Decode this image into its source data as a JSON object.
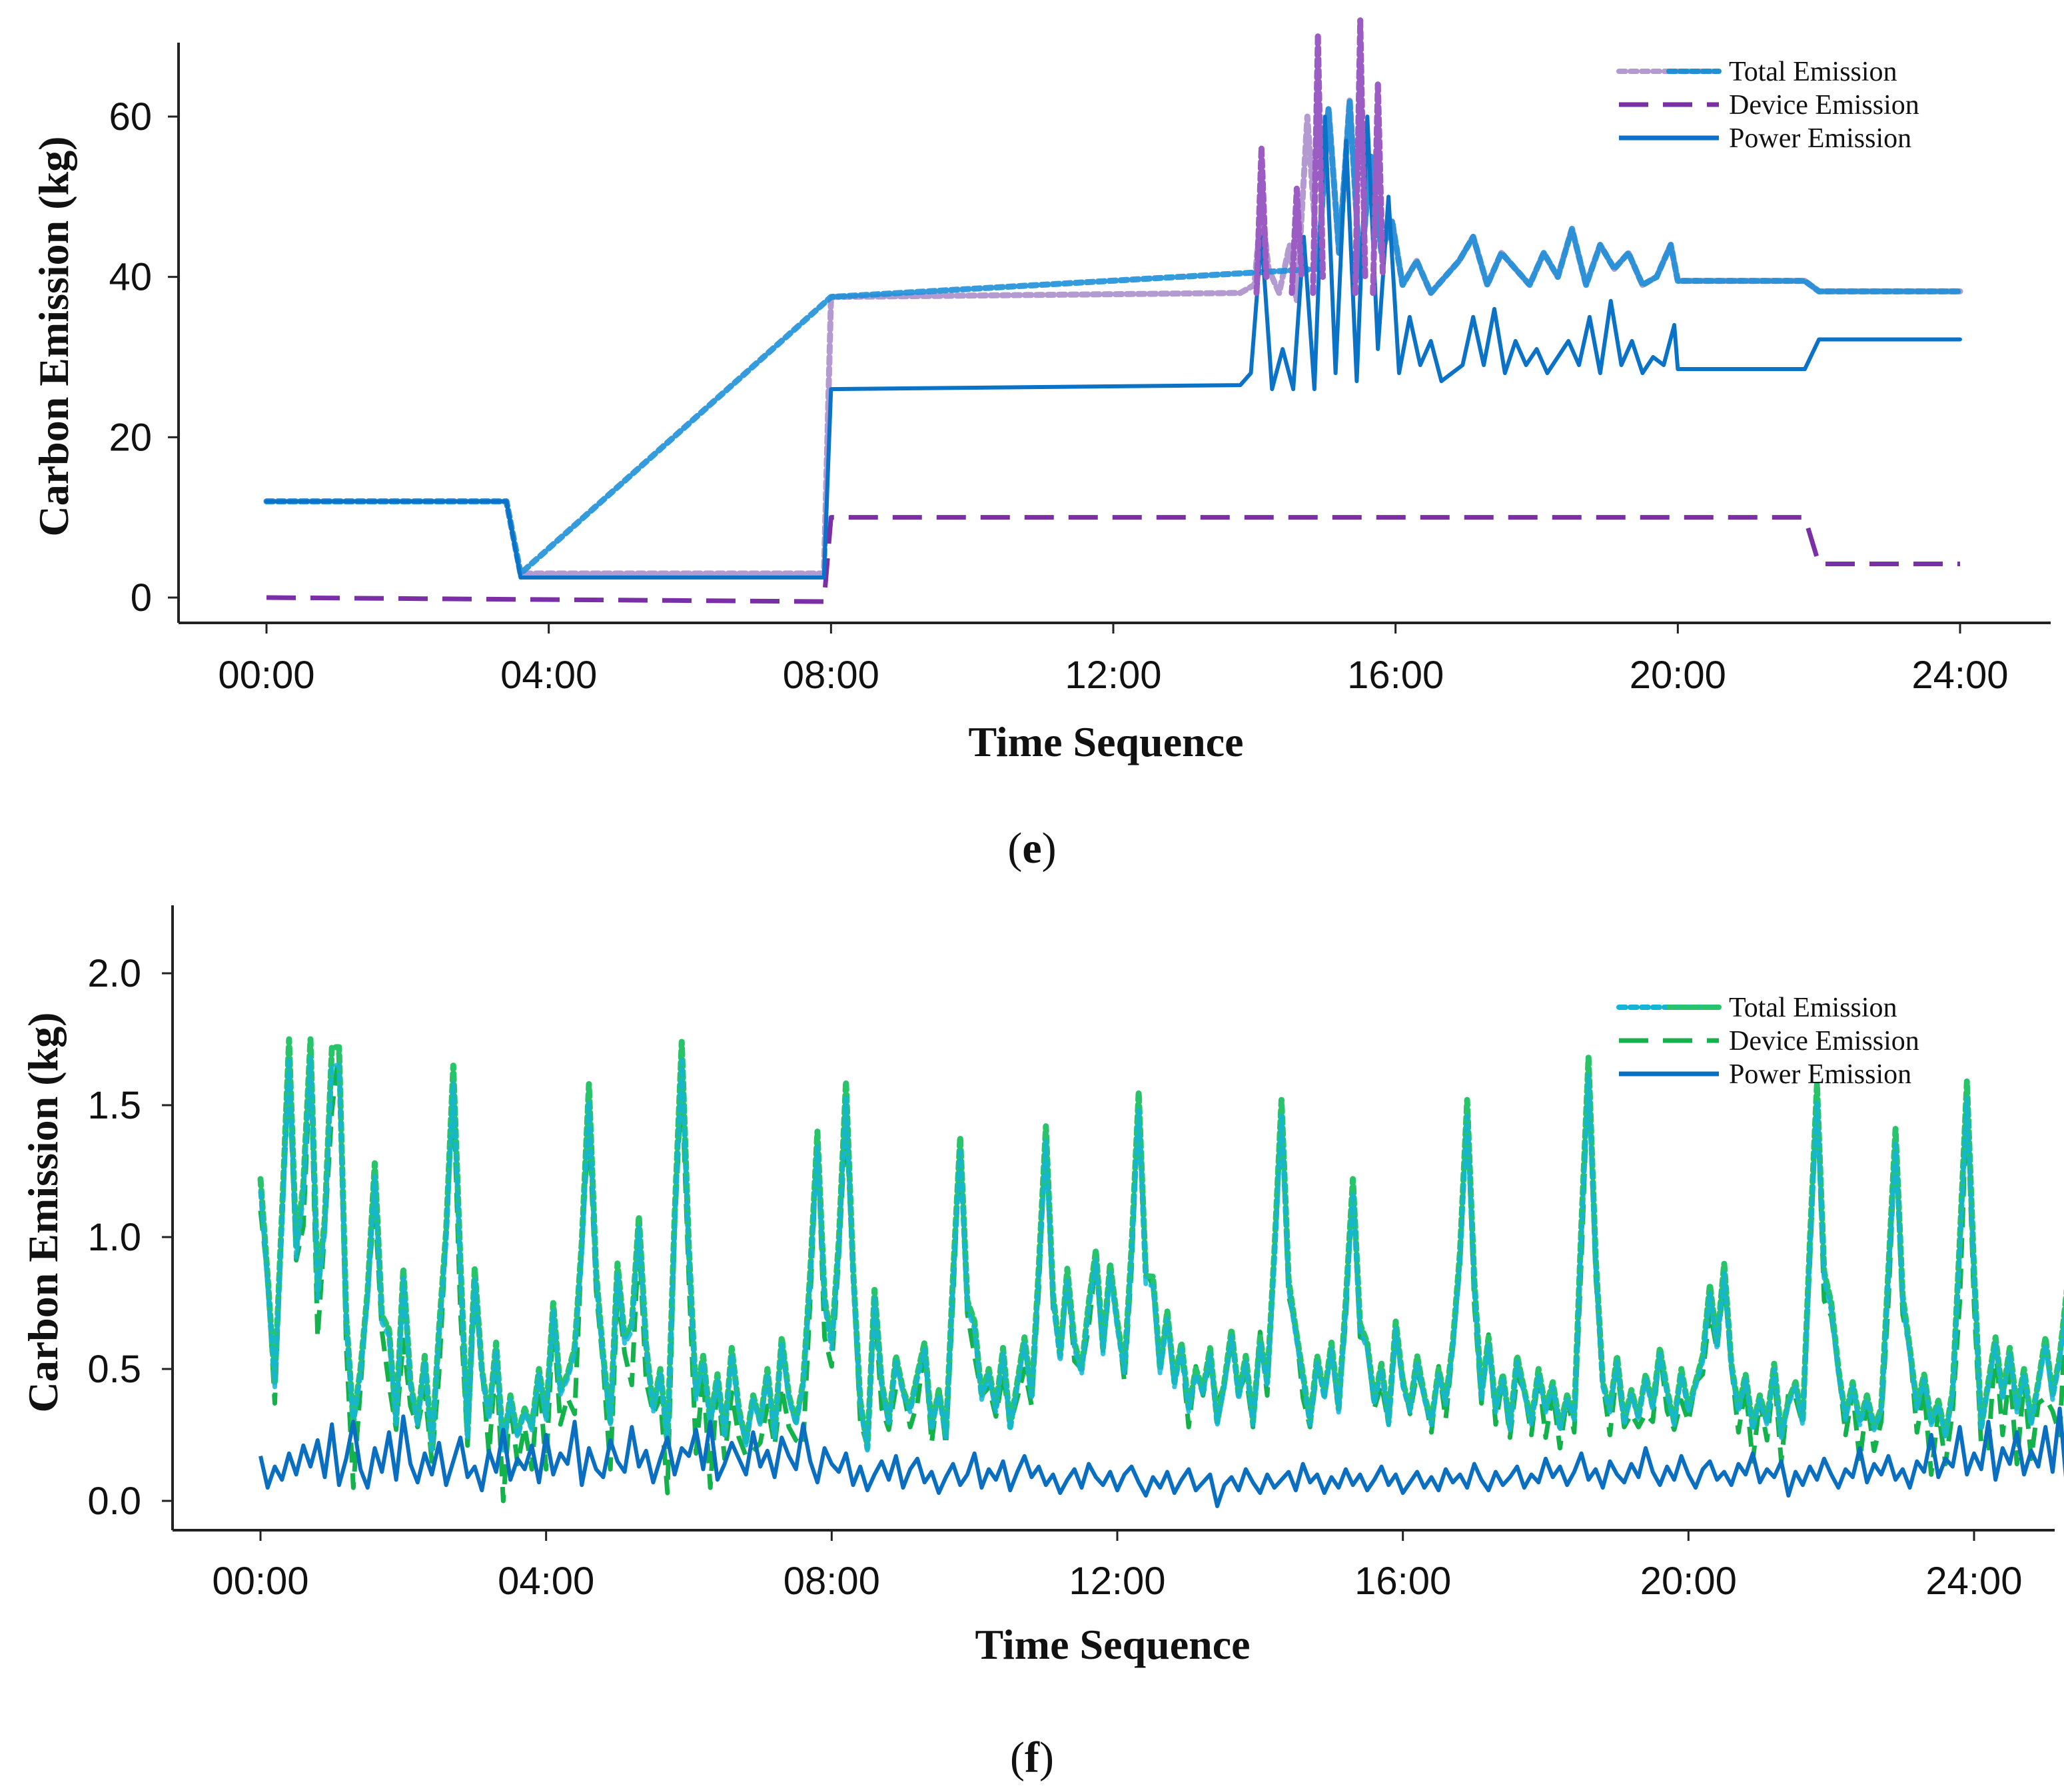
{
  "chart_data": [
    {
      "panel": "e",
      "panel_label": "e",
      "type": "line",
      "title": "",
      "xlabel": "Time Sequence",
      "ylabel": "Carbon Emission (kg)",
      "xlim": [
        -1.2,
        25.5
      ],
      "ylim": [
        -3,
        71
      ],
      "xticks": [
        0,
        4,
        8,
        12,
        16,
        20,
        24
      ],
      "xtick_labels": [
        "00:00",
        "04:00",
        "08:00",
        "12:00",
        "16:00",
        "20:00",
        "24:00"
      ],
      "yticks": [
        0,
        20,
        40,
        60
      ],
      "ytick_labels": [
        "0",
        "20",
        "40",
        "60"
      ],
      "legend": {
        "placement": "top-right"
      },
      "grid": false,
      "series": [
        {
          "name": "Total Emission",
          "style": "dotted",
          "colors": [
            "#b39ad0",
            "#1e90d8"
          ],
          "x": [
            0,
            3.4,
            3.6,
            7.9,
            8.0,
            13.8,
            14.0,
            14.1,
            14.2,
            14.35,
            14.5,
            14.6,
            14.75,
            14.9,
            15.05,
            15.2,
            15.35,
            15.5,
            15.65,
            15.8,
            15.95,
            16.1,
            16.3,
            16.5,
            16.7,
            16.9,
            17.1,
            17.3,
            17.5,
            17.7,
            17.9,
            18.1,
            18.3,
            18.5,
            18.7,
            18.9,
            19.1,
            19.3,
            19.5,
            19.7,
            19.9,
            20.0,
            21.8,
            22.0,
            24.0
          ],
          "y": [
            12,
            12,
            3,
            3,
            37.5,
            38,
            39,
            49,
            41,
            38,
            44,
            37,
            60,
            41,
            61,
            43,
            62,
            40,
            55,
            43,
            47,
            39,
            42,
            38,
            40,
            42,
            45,
            39,
            43,
            41,
            39,
            43,
            40,
            46,
            39,
            44,
            41,
            43,
            39,
            40,
            44,
            39.5,
            39.5,
            38.2,
            38.2
          ]
        },
        {
          "name": "Device Emission",
          "style": "dashed",
          "color": "#7b2fa6",
          "x": [
            0,
            7.9,
            8.0,
            21.8,
            22.0,
            24.0
          ],
          "y": [
            0,
            -0.5,
            10,
            10,
            4.2,
            4.2
          ]
        },
        {
          "name": "Power Emission",
          "style": "solid",
          "color": "#0a72c7",
          "x": [
            0,
            3.4,
            3.6,
            7.9,
            8.0,
            13.8,
            13.95,
            14.1,
            14.25,
            14.4,
            14.55,
            14.7,
            14.85,
            15.0,
            15.15,
            15.3,
            15.45,
            15.6,
            15.75,
            15.9,
            16.05,
            16.2,
            16.35,
            16.5,
            16.65,
            16.8,
            16.95,
            17.1,
            17.25,
            17.4,
            17.55,
            17.7,
            17.85,
            18.0,
            18.15,
            18.3,
            18.45,
            18.6,
            18.75,
            18.9,
            19.05,
            19.2,
            19.35,
            19.5,
            19.65,
            19.8,
            19.95,
            20.0,
            21.8,
            22.0,
            24.0
          ],
          "y": [
            12,
            12,
            2.5,
            2.5,
            26,
            26.5,
            28,
            45,
            26,
            31,
            26,
            45,
            26,
            60,
            28,
            57,
            27,
            60,
            31,
            50,
            28,
            35,
            29,
            32,
            27,
            28,
            29,
            35,
            29,
            36,
            28,
            32,
            29,
            31,
            28,
            30,
            32,
            29,
            35,
            28,
            37,
            29,
            32,
            28,
            30,
            29,
            34,
            28.5,
            28.5,
            32.2,
            32.2
          ]
        }
      ]
    },
    {
      "panel": "f",
      "panel_label": "f",
      "type": "line",
      "title": "",
      "xlabel": "Time Sequence",
      "ylabel": "Carbon Emission (kg)",
      "xlim": [
        -1.2,
        25.5
      ],
      "ylim": [
        -0.12,
        2.26
      ],
      "xticks": [
        0,
        4,
        8,
        12,
        16,
        20,
        24
      ],
      "xtick_labels": [
        "00:00",
        "04:00",
        "08:00",
        "12:00",
        "16:00",
        "20:00",
        "24:00"
      ],
      "yticks": [
        0,
        0.5,
        1.0,
        1.5,
        2.0
      ],
      "ytick_labels": [
        "0.0",
        "0.5",
        "1.0",
        "1.5",
        "2.0"
      ],
      "legend": {
        "placement": "top-right"
      },
      "grid": false,
      "x_start": 0,
      "x_step": 0.1,
      "series": [
        {
          "name": "Total Emission",
          "style": "dotted",
          "colors": [
            "#12b5d8",
            "#28c46a"
          ],
          "y": [
            1.22,
            0.85,
            0.45,
            0.95,
            0.6,
            0.25,
            1.2,
            1.75,
            0.8,
            0.35,
            0.55,
            1.72,
            0.7,
            0.3,
            0.5,
            0.2,
            0.8,
            0.4,
            0.65,
            0.3,
            0.88,
            0.45,
            0.3,
            0.55,
            0.2,
            0.65,
            0.42,
            0.35,
            0.58,
            0.25,
            0.88,
            0.5,
            0.32,
            0.6,
            0.2,
            0.4,
            0.25,
            0.35,
            0.28,
            0.5,
            0.32,
            0.75,
            0.42,
            0.48,
            0.58,
            0.3,
            0.22,
            0.38,
            0.55,
            0.3,
            0.9,
            0.62,
            0.4,
            0.3,
            0.55,
            0.35,
            0.5,
            0.22,
            0.45,
            0.3,
            0.65,
            0.4,
            0.55,
            0.3,
            0.48,
            0.25,
            0.58,
            0.35,
            0.22,
            0.4,
            0.3,
            0.5,
            0.25,
            0.62,
            0.4,
            0.3,
            0.45,
            0.55,
            0.9,
            0.45,
            0.6,
            0.32,
            0.5,
            0.25,
            0.38,
            0.2,
            0.8,
            0.45,
            0.3,
            0.55,
            0.42,
            0.35,
            0.48,
            0.6,
            0.28,
            0.42,
            0.25,
            0.55,
            0.35,
            0.45,
            0.68,
            0.4,
            0.5,
            0.35,
            0.58,
            0.28,
            0.45,
            0.62,
            0.4,
            0.8,
            0.5,
            0.72,
            0.55,
            0.88,
            0.6,
            0.5,
            0.75,
            0.95,
            0.58,
            0.9,
            0.68,
            0.5,
            0.8,
            0.4,
            0.62,
            0.85,
            0.5,
            0.72,
            0.45,
            0.6,
            0.35,
            0.5,
            0.42,
            0.58,
            0.3,
            0.45,
            0.65,
            0.4,
            0.55,
            0.3,
            0.62,
            0.45,
            0.88,
            0.52,
            0.38,
            0.65,
            0.48,
            0.3,
            0.55,
            0.4,
            0.6,
            0.35,
            0.5,
            0.28,
            0.45,
            0.6,
            0.38,
            0.52,
            0.3,
            0.68,
            0.45,
            0.35,
            0.55,
            0.4,
            0.3,
            0.5,
            0.38,
            0.6,
            0.45,
            0.3,
            0.52,
            0.4,
            0.62,
            0.35,
            0.48,
            0.28,
            0.55,
            0.42,
            0.3,
            0.5,
            0.35,
            0.45,
            0.28,
            0.4,
            0.32,
            0.5,
            0.38,
            0.28,
            0.45,
            0.35,
            0.55,
            0.3,
            0.42,
            0.32,
            0.48,
            0.36,
            0.58,
            0.42,
            0.3,
            0.5,
            0.35,
            0.45,
            0.55,
            0.82,
            0.6,
            0.9,
            0.52,
            0.35,
            0.48,
            0.28,
            0.4,
            0.3,
            0.52,
            0.25,
            0.38,
            0.45,
            0.3,
            0.5,
            0.62,
            0.4,
            0.75,
            0.5,
            0.32,
            0.45,
            0.3,
            0.4,
            0.28,
            0.35,
            0.52,
            0.3,
            0.42,
            0.58,
            0.36,
            0.48,
            0.3,
            0.38,
            0.25,
            0.42,
            0.55,
            0.35,
            0.5,
            0.28,
            0.45,
            0.62,
            0.4,
            0.58,
            0.35,
            0.5,
            0.3,
            0.45,
            0.62,
            0.4,
            0.55,
            0.8,
            0.6
          ],
          "peaks": [
            [
              0.4,
              1.75
            ],
            [
              1.0,
              1.72
            ],
            [
              1.6,
              1.28
            ],
            [
              2.7,
              1.65
            ],
            [
              4.6,
              1.58
            ],
            [
              5.3,
              1.08
            ],
            [
              5.9,
              1.74
            ],
            [
              7.8,
              1.4
            ],
            [
              8.2,
              1.59
            ],
            [
              9.8,
              1.38
            ],
            [
              11.0,
              1.42
            ],
            [
              12.3,
              1.55
            ],
            [
              14.3,
              1.52
            ],
            [
              15.3,
              1.22
            ],
            [
              16.9,
              1.52
            ],
            [
              18.6,
              1.68
            ],
            [
              21.8,
              1.58
            ],
            [
              22.9,
              1.41
            ],
            [
              23.9,
              1.59
            ]
          ]
        },
        {
          "name": "Device Emission",
          "style": "dashed",
          "color": "#13b24a",
          "offset_from_power": 0.05
        },
        {
          "name": "Power Emission",
          "style": "solid",
          "color": "#0a6fc0",
          "y": [
            0.17,
            0.05,
            0.13,
            0.08,
            0.18,
            0.1,
            0.21,
            0.13,
            0.23,
            0.09,
            0.29,
            0.06,
            0.16,
            0.3,
            0.12,
            0.05,
            0.2,
            0.11,
            0.26,
            0.08,
            0.32,
            0.14,
            0.07,
            0.18,
            0.1,
            0.22,
            0.06,
            0.15,
            0.24,
            0.09,
            0.13,
            0.04,
            0.19,
            0.11,
            0.27,
            0.08,
            0.16,
            0.12,
            0.21,
            0.07,
            0.25,
            0.1,
            0.18,
            0.14,
            0.3,
            0.06,
            0.2,
            0.12,
            0.09,
            0.23,
            0.15,
            0.11,
            0.28,
            0.13,
            0.19,
            0.07,
            0.16,
            0.24,
            0.1,
            0.2,
            0.17,
            0.27,
            0.12,
            0.3,
            0.08,
            0.14,
            0.22,
            0.16,
            0.1,
            0.26,
            0.13,
            0.19,
            0.09,
            0.24,
            0.17,
            0.12,
            0.29,
            0.15,
            0.07,
            0.2,
            0.14,
            0.11,
            0.18,
            0.06,
            0.13,
            0.04,
            0.1,
            0.15,
            0.08,
            0.17,
            0.05,
            0.12,
            0.16,
            0.07,
            0.11,
            0.03,
            0.09,
            0.14,
            0.06,
            0.1,
            0.18,
            0.05,
            0.12,
            0.08,
            0.15,
            0.04,
            0.11,
            0.17,
            0.09,
            0.13,
            0.06,
            0.1,
            0.03,
            0.08,
            0.12,
            0.05,
            0.14,
            0.09,
            0.06,
            0.11,
            0.04,
            0.1,
            0.13,
            0.07,
            0.02,
            0.09,
            0.05,
            0.11,
            0.03,
            0.08,
            0.12,
            0.04,
            0.07,
            0.1,
            -0.02,
            0.06,
            0.09,
            0.04,
            0.12,
            0.07,
            0.03,
            0.1,
            0.05,
            0.08,
            0.11,
            0.04,
            0.14,
            0.07,
            0.1,
            0.03,
            0.09,
            0.05,
            0.12,
            0.06,
            0.1,
            0.04,
            0.08,
            0.13,
            0.06,
            0.1,
            0.03,
            0.07,
            0.11,
            0.05,
            0.09,
            0.04,
            0.12,
            0.07,
            0.1,
            0.05,
            0.14,
            0.08,
            0.04,
            0.11,
            0.06,
            0.09,
            0.13,
            0.05,
            0.1,
            0.07,
            0.16,
            0.09,
            0.13,
            0.06,
            0.11,
            0.18,
            0.08,
            0.12,
            0.05,
            0.15,
            0.1,
            0.07,
            0.14,
            0.09,
            0.2,
            0.11,
            0.06,
            0.13,
            0.08,
            0.17,
            0.1,
            0.05,
            0.12,
            0.15,
            0.08,
            0.11,
            0.06,
            0.14,
            0.1,
            0.18,
            0.07,
            0.12,
            0.09,
            0.15,
            0.02,
            0.11,
            0.06,
            0.13,
            0.08,
            0.16,
            0.1,
            0.05,
            0.12,
            0.09,
            0.2,
            0.07,
            0.14,
            0.1,
            0.17,
            0.08,
            0.12,
            0.05,
            0.15,
            0.11,
            0.25,
            0.09,
            0.16,
            0.13,
            0.28,
            0.1,
            0.18,
            0.12,
            0.3,
            0.08,
            0.2,
            0.14,
            0.26,
            0.1,
            0.19,
            0.13,
            0.28,
            0.11,
            0.35,
            0.05,
            0.2,
            0.15
          ]
        }
      ]
    }
  ]
}
